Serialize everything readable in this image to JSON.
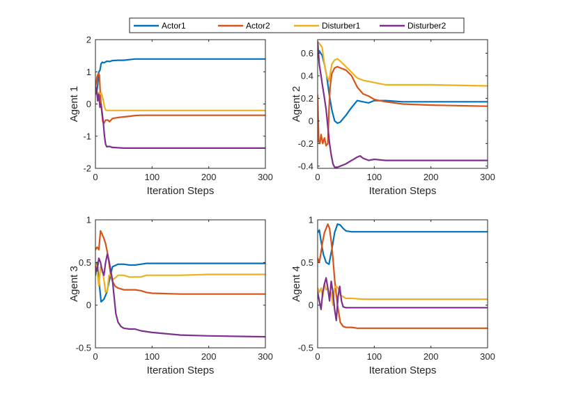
{
  "chart_data": {
    "type": "line",
    "legend": {
      "placement": "top-center",
      "entries": [
        {
          "name": "Actor1",
          "color": "#0072BD"
        },
        {
          "name": "Actor2",
          "color": "#D95319"
        },
        {
          "name": "Disturber1",
          "color": "#EDB120"
        },
        {
          "name": "Disturber2",
          "color": "#7E2F8E"
        }
      ]
    },
    "panels": [
      {
        "ylabel": "Agent 1",
        "xlabel": "Iteration Steps",
        "xlim": [
          0,
          300
        ],
        "ylim": [
          -2,
          2
        ],
        "xticks": [
          0,
          100,
          200,
          300
        ],
        "yticks": [
          -2,
          -1,
          0,
          1,
          2
        ],
        "series": [
          {
            "name": "Actor1",
            "x": [
              0,
              2,
              4,
              6,
              8,
              10,
              12,
              15,
              20,
              25,
              30,
              40,
              50,
              60,
              70,
              80,
              100,
              150,
              200,
              300
            ],
            "y": [
              0.45,
              0.35,
              0.6,
              1.0,
              1.05,
              1.25,
              1.3,
              1.28,
              1.33,
              1.32,
              1.35,
              1.36,
              1.36,
              1.38,
              1.4,
              1.4,
              1.4,
              1.4,
              1.4,
              1.4
            ]
          },
          {
            "name": "Actor2",
            "x": [
              0,
              3,
              5,
              7,
              9,
              11,
              13,
              15,
              18,
              22,
              25,
              30,
              40,
              50,
              60,
              70,
              80,
              100,
              150,
              200,
              300
            ],
            "y": [
              0.5,
              0.85,
              0.95,
              0.9,
              0.2,
              -0.2,
              -0.55,
              -0.6,
              -0.5,
              -0.5,
              -0.55,
              -0.45,
              -0.42,
              -0.4,
              -0.38,
              -0.36,
              -0.35,
              -0.35,
              -0.35,
              -0.35,
              -0.35
            ]
          },
          {
            "name": "Disturber1",
            "x": [
              0,
              2,
              4,
              6,
              8,
              10,
              12,
              14,
              16,
              18,
              20,
              25,
              30,
              40,
              50,
              100,
              200,
              300
            ],
            "y": [
              0.3,
              0.45,
              0.25,
              0.35,
              0.3,
              0.35,
              0.25,
              0.1,
              -0.1,
              -0.18,
              -0.2,
              -0.2,
              -0.2,
              -0.2,
              -0.2,
              -0.2,
              -0.2,
              -0.2
            ]
          },
          {
            "name": "Disturber2",
            "x": [
              0,
              2,
              4,
              6,
              8,
              10,
              12,
              14,
              16,
              18,
              20,
              22,
              25,
              30,
              40,
              50,
              60,
              100,
              150,
              200,
              300
            ],
            "y": [
              0.3,
              0.5,
              0.1,
              0.3,
              -0.1,
              0.0,
              -0.3,
              -0.6,
              -1.0,
              -1.25,
              -1.33,
              -1.32,
              -1.32,
              -1.35,
              -1.36,
              -1.37,
              -1.37,
              -1.37,
              -1.37,
              -1.37,
              -1.37
            ]
          }
        ]
      },
      {
        "ylabel": "Agent 2",
        "xlabel": "Iteration Steps",
        "xlim": [
          0,
          300
        ],
        "ylim": [
          -0.42,
          0.72
        ],
        "xticks": [
          0,
          100,
          200,
          300
        ],
        "yticks": [
          -0.4,
          -0.2,
          0,
          0.2,
          0.4,
          0.6
        ],
        "series": [
          {
            "name": "Actor1",
            "x": [
              0,
              3,
              8,
              12,
              16,
              20,
              25,
              30,
              35,
              40,
              45,
              50,
              60,
              70,
              80,
              90,
              100,
              120,
              150,
              200,
              300
            ],
            "y": [
              0.6,
              0.62,
              0.58,
              0.5,
              0.4,
              0.25,
              0.1,
              0.0,
              -0.02,
              -0.01,
              0.02,
              0.05,
              0.12,
              0.18,
              0.17,
              0.16,
              0.18,
              0.18,
              0.17,
              0.17,
              0.17
            ]
          },
          {
            "name": "Actor2",
            "x": [
              0,
              2,
              4,
              6,
              9,
              12,
              15,
              18,
              20,
              22,
              25,
              30,
              35,
              40,
              50,
              60,
              70,
              80,
              90,
              100,
              120,
              150,
              200,
              300
            ],
            "y": [
              0.23,
              -0.18,
              -0.2,
              -0.12,
              -0.2,
              -0.15,
              -0.22,
              -0.2,
              0.1,
              0.3,
              0.42,
              0.47,
              0.48,
              0.47,
              0.45,
              0.4,
              0.3,
              0.24,
              0.22,
              0.19,
              0.17,
              0.15,
              0.14,
              0.13
            ]
          },
          {
            "name": "Disturber1",
            "x": [
              0,
              4,
              8,
              12,
              16,
              20,
              25,
              30,
              35,
              40,
              50,
              60,
              70,
              80,
              90,
              100,
              120,
              150,
              200,
              300
            ],
            "y": [
              0.7,
              0.68,
              0.65,
              0.5,
              0.4,
              0.35,
              0.5,
              0.54,
              0.55,
              0.53,
              0.48,
              0.43,
              0.38,
              0.36,
              0.35,
              0.34,
              0.32,
              0.32,
              0.32,
              0.31
            ]
          },
          {
            "name": "Disturber2",
            "x": [
              0,
              3,
              6,
              9,
              12,
              15,
              18,
              21,
              24,
              27,
              30,
              35,
              40,
              50,
              60,
              70,
              75,
              80,
              90,
              100,
              120,
              150,
              200,
              300
            ],
            "y": [
              0.7,
              0.5,
              0.4,
              0.3,
              0.2,
              0.1,
              -0.05,
              -0.2,
              -0.3,
              -0.38,
              -0.41,
              -0.41,
              -0.4,
              -0.38,
              -0.35,
              -0.32,
              -0.31,
              -0.33,
              -0.35,
              -0.34,
              -0.35,
              -0.35,
              -0.35,
              -0.35
            ]
          }
        ]
      },
      {
        "ylabel": "Agent 3",
        "xlabel": "Iteration Steps",
        "xlim": [
          0,
          300
        ],
        "ylim": [
          -0.5,
          1
        ],
        "xticks": [
          0,
          100,
          200,
          300
        ],
        "yticks": [
          -0.5,
          0,
          0.5,
          1
        ],
        "series": [
          {
            "name": "Actor1",
            "x": [
              0,
              3,
              6,
              10,
              15,
              20,
              25,
              30,
              40,
              50,
              60,
              70,
              80,
              90,
              100,
              120,
              150,
              200,
              300
            ],
            "y": [
              0.35,
              0.5,
              0.3,
              0.04,
              0.07,
              0.15,
              0.3,
              0.45,
              0.48,
              0.48,
              0.47,
              0.47,
              0.48,
              0.49,
              0.49,
              0.49,
              0.49,
              0.49,
              0.49
            ]
          },
          {
            "name": "Actor2",
            "x": [
              0,
              3,
              6,
              9,
              12,
              15,
              18,
              21,
              24,
              27,
              30,
              35,
              40,
              50,
              60,
              70,
              80,
              90,
              100,
              150,
              200,
              300
            ],
            "y": [
              0.65,
              0.68,
              0.65,
              0.87,
              0.83,
              0.78,
              0.72,
              0.62,
              0.5,
              0.35,
              0.28,
              0.22,
              0.2,
              0.18,
              0.18,
              0.18,
              0.17,
              0.15,
              0.14,
              0.13,
              0.13,
              0.13
            ]
          },
          {
            "name": "Disturber1",
            "x": [
              0,
              3,
              6,
              9,
              12,
              15,
              18,
              21,
              24,
              27,
              30,
              35,
              40,
              50,
              60,
              70,
              80,
              90,
              100,
              150,
              200,
              300
            ],
            "y": [
              0.5,
              0.42,
              0.22,
              0.45,
              0.42,
              0.3,
              0.15,
              0.17,
              0.35,
              0.35,
              0.3,
              0.32,
              0.35,
              0.35,
              0.33,
              0.33,
              0.33,
              0.35,
              0.35,
              0.35,
              0.36,
              0.36
            ]
          },
          {
            "name": "Disturber2",
            "x": [
              0,
              3,
              6,
              9,
              12,
              15,
              18,
              21,
              24,
              27,
              30,
              33,
              36,
              40,
              45,
              50,
              60,
              70,
              80,
              100,
              150,
              200,
              300
            ],
            "y": [
              0.45,
              0.4,
              0.55,
              0.5,
              0.4,
              0.35,
              0.5,
              0.6,
              0.52,
              0.4,
              0.3,
              0.1,
              -0.1,
              -0.2,
              -0.25,
              -0.27,
              -0.28,
              -0.28,
              -0.3,
              -0.32,
              -0.35,
              -0.36,
              -0.37
            ]
          }
        ]
      },
      {
        "ylabel": "Agent 4",
        "xlabel": "Iteration Steps",
        "xlim": [
          0,
          300
        ],
        "ylim": [
          -0.5,
          1
        ],
        "xticks": [
          0,
          100,
          200,
          300
        ],
        "yticks": [
          -0.5,
          0,
          0.5,
          1
        ],
        "series": [
          {
            "name": "Actor1",
            "x": [
              0,
              3,
              6,
              10,
              15,
              20,
              25,
              30,
              35,
              40,
              45,
              50,
              60,
              80,
              100,
              150,
              200,
              300
            ],
            "y": [
              0.85,
              0.88,
              0.75,
              0.6,
              0.5,
              0.48,
              0.65,
              0.85,
              0.95,
              0.94,
              0.9,
              0.87,
              0.86,
              0.86,
              0.86,
              0.86,
              0.86,
              0.86
            ]
          },
          {
            "name": "Actor2",
            "x": [
              0,
              3,
              6,
              9,
              12,
              15,
              18,
              21,
              24,
              27,
              30,
              35,
              40,
              45,
              50,
              60,
              70,
              80,
              100,
              150,
              200,
              300
            ],
            "y": [
              0.55,
              0.5,
              0.62,
              0.75,
              0.85,
              0.9,
              0.95,
              0.9,
              0.75,
              0.55,
              0.3,
              0.0,
              -0.2,
              -0.25,
              -0.26,
              -0.26,
              -0.27,
              -0.27,
              -0.27,
              -0.27,
              -0.27,
              -0.27
            ]
          },
          {
            "name": "Disturber1",
            "x": [
              0,
              3,
              6,
              9,
              12,
              15,
              18,
              21,
              24,
              27,
              30,
              33,
              36,
              40,
              45,
              50,
              60,
              80,
              100,
              150,
              200,
              300
            ],
            "y": [
              0.2,
              0.15,
              0.2,
              0.1,
              0.25,
              0.18,
              0.2,
              0.1,
              0.15,
              0.0,
              0.2,
              0.22,
              0.2,
              0.12,
              0.1,
              0.08,
              0.08,
              0.07,
              0.07,
              0.07,
              0.07,
              0.07
            ]
          },
          {
            "name": "Disturber2",
            "x": [
              0,
              3,
              6,
              9,
              12,
              15,
              18,
              21,
              24,
              27,
              30,
              33,
              36,
              39,
              42,
              45,
              50,
              60,
              80,
              100,
              150,
              200,
              300
            ],
            "y": [
              0.15,
              0.05,
              -0.05,
              0.15,
              0.25,
              0.32,
              0.2,
              0.05,
              0.28,
              0.15,
              -0.05,
              -0.18,
              0.1,
              0.22,
              0.05,
              -0.02,
              -0.03,
              -0.03,
              -0.03,
              -0.03,
              -0.03,
              -0.03,
              -0.03
            ]
          }
        ]
      }
    ]
  }
}
